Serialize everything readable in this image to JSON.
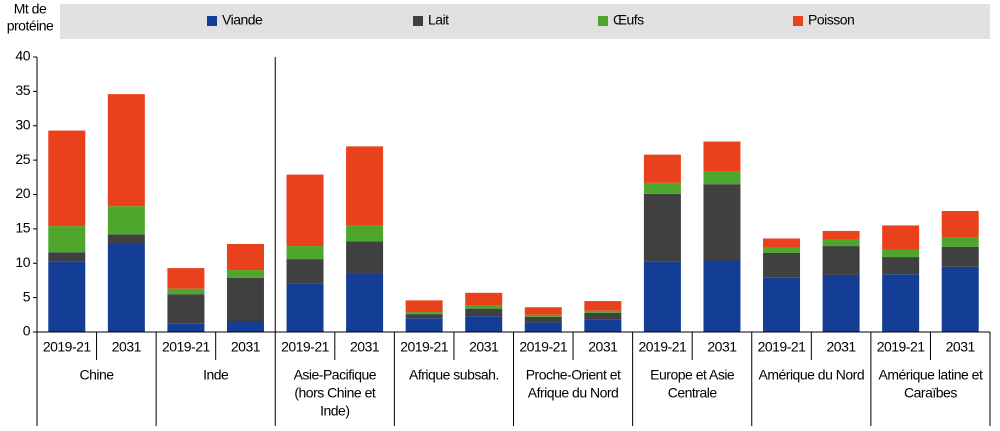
{
  "chart_data": {
    "type": "stacked-bar",
    "y_label": [
      "Mt de",
      "protéine"
    ],
    "categories": [
      "2019-21",
      "2031",
      "2019-21",
      "2031",
      "2019-21",
      "2031",
      "2019-21",
      "2031",
      "2019-21",
      "2031",
      "2019-21",
      "2031",
      "2019-21",
      "2031",
      "2019-21",
      "2031"
    ],
    "groups": [
      [
        "Chine"
      ],
      [
        "Inde"
      ],
      [
        "Asie-Pacifique",
        "(hors Chine et",
        "Inde)"
      ],
      [
        "Afrique subsah."
      ],
      [
        "Proche-Orient et",
        "Afrique du Nord"
      ],
      [
        "Europe et Asie",
        "Centrale"
      ],
      [
        "Amérique du Nord"
      ],
      [
        "Amérique latine et",
        "Caraïbes"
      ]
    ],
    "series": [
      {
        "name": "Viande",
        "color": "#143d96",
        "values": [
          10.3,
          12.8,
          1.2,
          1.6,
          7.0,
          8.5,
          2.0,
          2.3,
          1.4,
          1.8,
          10.3,
          10.4,
          7.9,
          8.3,
          8.4,
          9.5
        ]
      },
      {
        "name": "Lait",
        "color": "#404040",
        "values": [
          1.3,
          1.4,
          4.3,
          6.3,
          3.6,
          4.7,
          0.6,
          1.1,
          0.8,
          1.0,
          9.8,
          11.1,
          3.6,
          4.2,
          2.5,
          2.9
        ]
      },
      {
        "name": "Œufs",
        "color": "#4ea72c",
        "values": [
          3.8,
          4.1,
          0.8,
          1.1,
          1.9,
          2.3,
          0.3,
          0.4,
          0.3,
          0.3,
          1.6,
          1.8,
          0.8,
          0.9,
          1.1,
          1.3
        ]
      },
      {
        "name": "Poisson",
        "color": "#e8411c",
        "values": [
          13.9,
          16.3,
          3.0,
          3.8,
          10.4,
          11.5,
          1.7,
          1.9,
          1.1,
          1.4,
          4.1,
          4.4,
          1.3,
          1.3,
          3.5,
          3.9
        ]
      }
    ],
    "ylim": [
      0,
      40
    ],
    "yticks": [
      0,
      5,
      10,
      15,
      20,
      25,
      30,
      35,
      40
    ]
  }
}
